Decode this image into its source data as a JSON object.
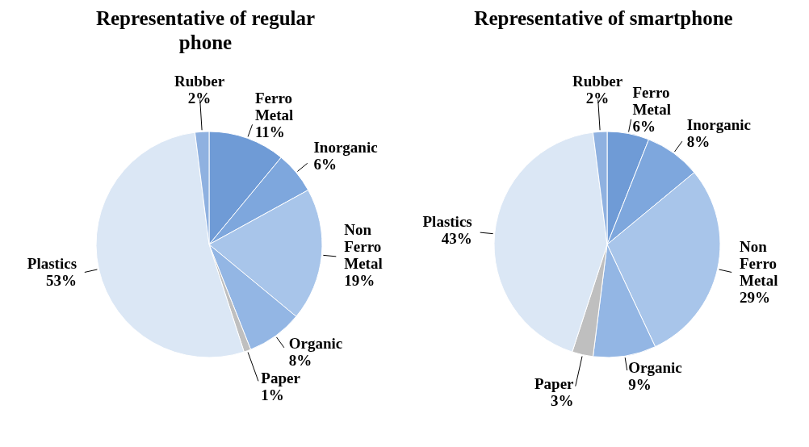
{
  "chart_data": [
    {
      "type": "pie",
      "title": "Representative of regular phone",
      "categories": [
        "Ferro Metal",
        "Inorganic",
        "Non Ferro Metal",
        "Organic",
        "Paper",
        "Plastics",
        "Rubber"
      ],
      "values": [
        11,
        6,
        19,
        8,
        1,
        53,
        2
      ],
      "value_labels": [
        "11%",
        "6%",
        "19%",
        "8%",
        "1%",
        "53%",
        "2%"
      ],
      "colors": [
        "#6f9bd6",
        "#7ea7dd",
        "#a8c5ea",
        "#93b6e4",
        "#bfbfbf",
        "#dbe7f5",
        "#8fb1e0"
      ]
    },
    {
      "type": "pie",
      "title": "Representative of smartphone",
      "categories": [
        "Ferro Metal",
        "Inorganic",
        "Non Ferro Metal",
        "Organic",
        "Paper",
        "Plastics",
        "Rubber"
      ],
      "values": [
        6,
        8,
        29,
        9,
        3,
        43,
        2
      ],
      "value_labels": [
        "6%",
        "8%",
        "29%",
        "9%",
        "3%",
        "43%",
        "2%"
      ],
      "colors": [
        "#6f9bd6",
        "#7ea7dd",
        "#a8c5ea",
        "#93b6e4",
        "#bfbfbf",
        "#dbe7f5",
        "#8fb1e0"
      ]
    }
  ]
}
